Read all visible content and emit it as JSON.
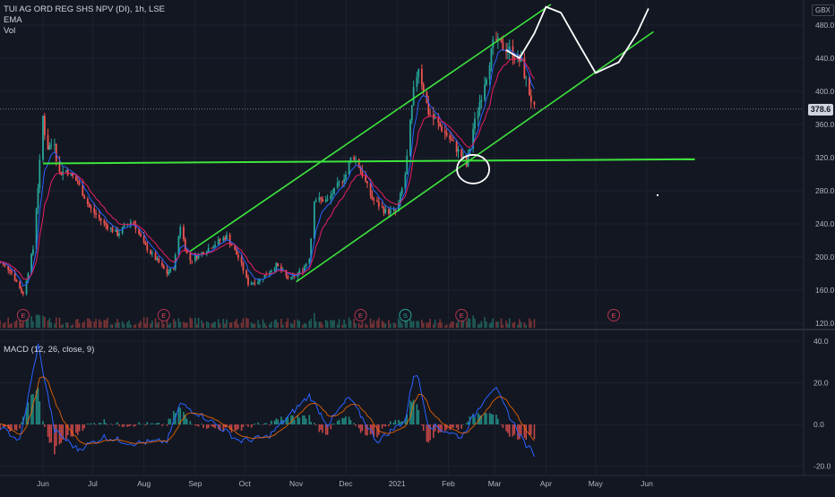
{
  "legend": {
    "symbol": "TUI AG ORD REG SHS NPV (DI), 1h, LSE",
    "ema": "EMA",
    "vol": "Vol",
    "macd": "MACD (12, 26, close, 9)"
  },
  "currency": "GBX",
  "last_price": "378.6",
  "chart_data": [
    {
      "type": "line",
      "panel": "price",
      "title": "TUI AG ORD REG SHS NPV (DI), 1h, LSE",
      "ylim": [
        120,
        500
      ],
      "y_ticks": [
        120,
        160,
        200,
        240,
        280,
        320,
        360,
        400,
        440,
        480
      ],
      "y_tick_labels": [
        "120.0",
        "160.0",
        "200.0",
        "240.0",
        "280.0",
        "320.0",
        "360.0",
        "400.0",
        "440.0",
        "480.0"
      ],
      "x_tick_labels": [
        "Jun",
        "Jul",
        "Aug",
        "Sep",
        "Oct",
        "Nov",
        "Dec",
        "2021",
        "Feb",
        "Mar",
        "Apr",
        "May",
        "Jun"
      ],
      "grid": true,
      "price_path": [
        [
          "2020-05-04",
          195
        ],
        [
          "2020-05-12",
          185
        ],
        [
          "2020-05-20",
          155
        ],
        [
          "2020-05-26",
          210
        ],
        [
          "2020-05-29",
          285
        ],
        [
          "2020-06-01",
          370
        ],
        [
          "2020-06-03",
          330
        ],
        [
          "2020-06-08",
          340
        ],
        [
          "2020-06-10",
          300
        ],
        [
          "2020-06-15",
          305
        ],
        [
          "2020-06-22",
          290
        ],
        [
          "2020-06-29",
          260
        ],
        [
          "2020-07-08",
          240
        ],
        [
          "2020-07-16",
          228
        ],
        [
          "2020-07-25",
          245
        ],
        [
          "2020-08-01",
          215
        ],
        [
          "2020-08-08",
          198
        ],
        [
          "2020-08-15",
          180
        ],
        [
          "2020-08-19",
          188
        ],
        [
          "2020-08-23",
          238
        ],
        [
          "2020-08-28",
          195
        ],
        [
          "2020-09-05",
          205
        ],
        [
          "2020-09-12",
          215
        ],
        [
          "2020-09-20",
          225
        ],
        [
          "2020-09-28",
          196
        ],
        [
          "2020-10-03",
          168
        ],
        [
          "2020-10-10",
          172
        ],
        [
          "2020-10-20",
          190
        ],
        [
          "2020-10-28",
          172
        ],
        [
          "2020-11-05",
          185
        ],
        [
          "2020-11-09",
          200
        ],
        [
          "2020-11-12",
          270
        ],
        [
          "2020-11-20",
          268
        ],
        [
          "2020-12-01",
          300
        ],
        [
          "2020-12-05",
          325
        ],
        [
          "2020-12-09",
          310
        ],
        [
          "2020-12-17",
          270
        ],
        [
          "2020-12-25",
          255
        ],
        [
          "2021-01-01",
          255
        ],
        [
          "2021-01-06",
          300
        ],
        [
          "2021-01-11",
          400
        ],
        [
          "2021-01-14",
          430
        ],
        [
          "2021-01-20",
          375
        ],
        [
          "2021-02-01",
          345
        ],
        [
          "2021-02-08",
          325
        ],
        [
          "2021-02-12",
          310
        ],
        [
          "2021-02-16",
          355
        ],
        [
          "2021-02-24",
          420
        ],
        [
          "2021-03-01",
          465
        ],
        [
          "2021-03-04",
          455
        ],
        [
          "2021-03-10",
          450
        ],
        [
          "2021-03-17",
          435
        ],
        [
          "2021-03-23",
          390
        ],
        [
          "2021-03-25",
          378.6
        ]
      ],
      "annotations": {
        "horizontal_line": [
          [
            "2020-06-01",
            313
          ],
          [
            "2021-06-30",
            318
          ]
        ],
        "channel_upper": [
          [
            "2020-08-29",
            207
          ],
          [
            "2021-04-04",
            505
          ]
        ],
        "channel_lower": [
          [
            "2020-11-01",
            170
          ],
          [
            "2021-06-05",
            472
          ]
        ],
        "projected_path": [
          [
            "2021-03-08",
            450
          ],
          [
            "2021-03-16",
            440
          ],
          [
            "2021-03-25",
            470
          ],
          [
            "2021-04-01",
            502
          ],
          [
            "2021-04-10",
            495
          ],
          [
            "2021-04-20",
            460
          ],
          [
            "2021-05-01",
            422
          ],
          [
            "2021-05-15",
            435
          ],
          [
            "2021-05-26",
            470
          ],
          [
            "2021-06-02",
            500
          ]
        ],
        "earnings_markers": [
          "2020-05-20",
          "2020-08-13",
          "2020-12-10",
          "2021-02-09",
          "2021-05-12"
        ],
        "split_markers": [
          "2021-01-06"
        ]
      }
    },
    {
      "type": "line",
      "panel": "macd",
      "title": "MACD (12, 26, close, 9)",
      "ylim": [
        -22,
        45
      ],
      "y_ticks": [
        -20,
        0,
        20,
        40
      ],
      "y_tick_labels": [
        "-20.0",
        "0.0",
        "20.0",
        "40.0"
      ],
      "macd_path": [
        [
          "2020-05-04",
          0
        ],
        [
          "2020-05-18",
          -8
        ],
        [
          "2020-05-29",
          38
        ],
        [
          "2020-06-08",
          -3
        ],
        [
          "2020-06-22",
          -12
        ],
        [
          "2020-07-08",
          -6
        ],
        [
          "2020-07-25",
          -9
        ],
        [
          "2020-08-15",
          -8
        ],
        [
          "2020-08-23",
          10
        ],
        [
          "2020-09-10",
          2
        ],
        [
          "2020-09-28",
          -8
        ],
        [
          "2020-10-15",
          -6
        ],
        [
          "2020-11-09",
          14
        ],
        [
          "2020-11-20",
          0
        ],
        [
          "2020-12-03",
          13
        ],
        [
          "2020-12-20",
          -8
        ],
        [
          "2021-01-06",
          2
        ],
        [
          "2021-01-12",
          28
        ],
        [
          "2021-01-20",
          0
        ],
        [
          "2021-02-09",
          -6
        ],
        [
          "2021-02-24",
          14
        ],
        [
          "2021-03-01",
          18
        ],
        [
          "2021-03-10",
          4
        ],
        [
          "2021-03-20",
          -10
        ],
        [
          "2021-03-25",
          -14
        ]
      ]
    }
  ]
}
